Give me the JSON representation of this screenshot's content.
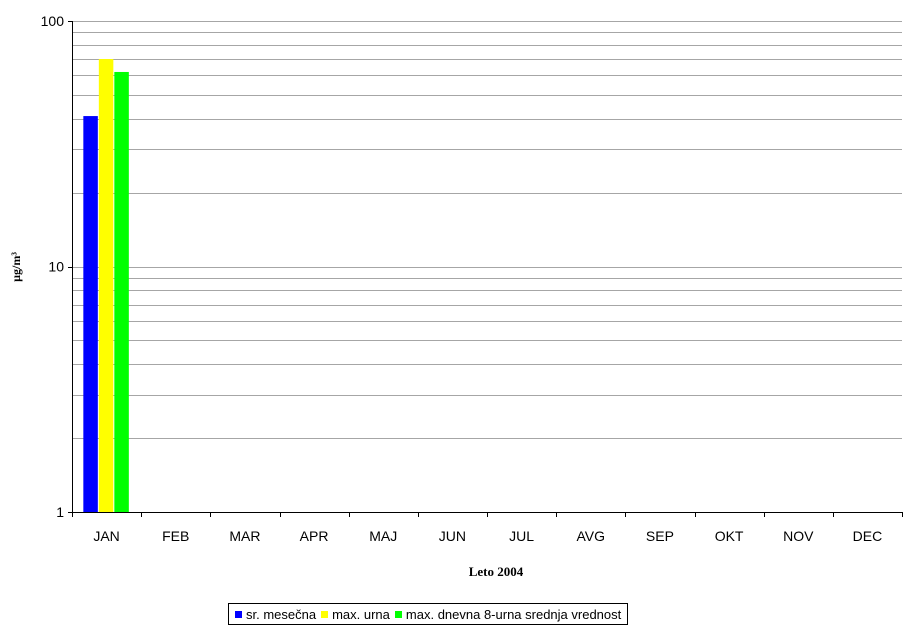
{
  "chart_data": {
    "type": "bar",
    "scale": "log",
    "ylim": [
      1,
      100
    ],
    "yticks": [
      "1",
      "10",
      "100"
    ],
    "grid": true,
    "legend_position": "bottom",
    "xlabel": "Leto 2004",
    "ylabel": "µg/m³",
    "categories": [
      "JAN",
      "FEB",
      "MAR",
      "APR",
      "MAJ",
      "JUN",
      "JUL",
      "AVG",
      "SEP",
      "OKT",
      "NOV",
      "DEC"
    ],
    "series": [
      {
        "name": "sr. mesečna",
        "color": "#0000ff",
        "values": [
          41,
          null,
          null,
          null,
          null,
          null,
          null,
          null,
          null,
          null,
          null,
          null
        ]
      },
      {
        "name": "max. urna",
        "color": "#ffff00",
        "values": [
          70,
          null,
          null,
          null,
          null,
          null,
          null,
          null,
          null,
          null,
          null,
          null
        ]
      },
      {
        "name": "max. dnevna 8-urna srednja vrednost",
        "color": "#00ff00",
        "values": [
          62,
          null,
          null,
          null,
          null,
          null,
          null,
          null,
          null,
          null,
          null,
          null
        ]
      }
    ]
  }
}
